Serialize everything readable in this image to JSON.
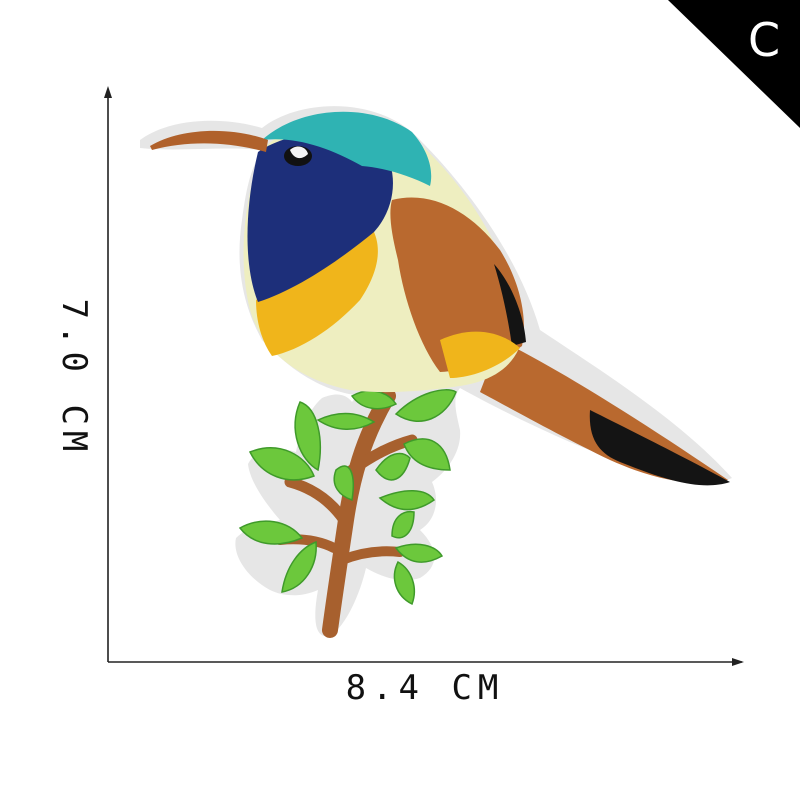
{
  "badge": {
    "label": "C"
  },
  "dimensions": {
    "width_label": "8.4 CM",
    "height_label": "7.0 CM"
  },
  "colors": {
    "badge": "#000000",
    "felt": "#e6e6e6",
    "beak": "#b0612b",
    "crown": "#2fb3b3",
    "face": "#1d2f7a",
    "throat_yellow": "#f0b51b",
    "belly": "#eeeec0",
    "wing": "#b9692f",
    "tail_tip": "#141414",
    "leaf": "#6cc83c",
    "branch": "#a7602e"
  }
}
